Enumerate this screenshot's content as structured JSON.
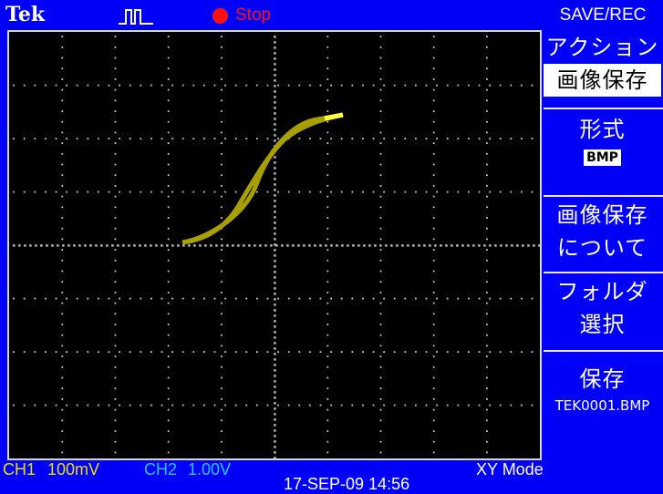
{
  "header": {
    "brand": "Tek",
    "trigger_icon": "trigger-waveform-icon",
    "run_state": "Stop",
    "run_color": "#ff1010",
    "menu_title": "SAVE/REC"
  },
  "menu": {
    "action_label": "アクション",
    "action_value": "画像保存",
    "format_label": "形式",
    "format_value": "BMP",
    "about_line1": "画像保存",
    "about_line2": "について",
    "folder_line1": "フォルダ",
    "folder_line2": "選択",
    "save_label": "保存",
    "save_file": "TEK0001.BMP"
  },
  "status": {
    "ch1_label": "CH1",
    "ch1_scale": "100mV",
    "ch1_color": "#e8e000",
    "ch2_label": "CH2",
    "ch2_scale": "1.00V",
    "ch2_color": "#28c8ff",
    "mode": "XY Mode",
    "datetime": "17-SEP-09 14:56"
  },
  "display": {
    "background": "#000000",
    "trace_color": "#a8a000",
    "trace_highlight": "#ffff40"
  }
}
